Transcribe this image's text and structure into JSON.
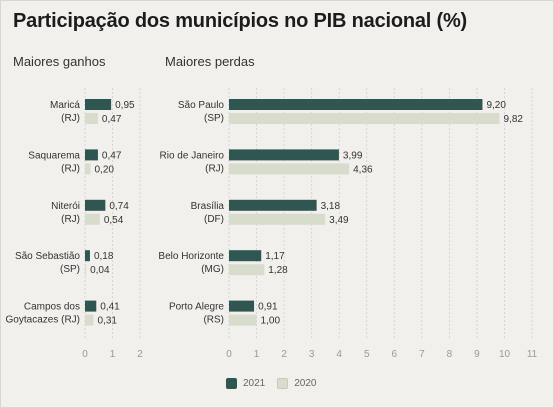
{
  "title": "Participação dos municípios no PIB nacional (%)",
  "colors": {
    "y2021": "#2f5651",
    "y2020": "#d8dccd",
    "grid": "#cfcfcb",
    "axis_text": "#9a9a96"
  },
  "chart_data": [
    {
      "type": "bar",
      "orientation": "horizontal",
      "subtitle": "Maiores ganhos",
      "categories": [
        [
          "Maricá",
          "(RJ)"
        ],
        [
          "Saquarema",
          "(RJ)"
        ],
        [
          "Niterói",
          "(RJ)"
        ],
        [
          "São Sebastião",
          "(SP)"
        ],
        [
          "Campos dos",
          "Goytacazes (RJ)"
        ]
      ],
      "series": [
        {
          "name": "2021",
          "values": [
            0.95,
            0.47,
            0.74,
            0.18,
            0.41
          ],
          "labels": [
            "0,95",
            "0,47",
            "0,74",
            "0,18",
            "0,41"
          ]
        },
        {
          "name": "2020",
          "values": [
            0.47,
            0.2,
            0.54,
            0.04,
            0.31
          ],
          "labels": [
            "0,47",
            "0,20",
            "0,54",
            "0,04",
            "0,31"
          ]
        }
      ],
      "xlim": [
        0,
        2
      ],
      "ticks": [
        0,
        1,
        2
      ],
      "grid": true
    },
    {
      "type": "bar",
      "orientation": "horizontal",
      "subtitle": "Maiores perdas",
      "categories": [
        [
          "São Paulo",
          "(SP)"
        ],
        [
          "Rio de Janeiro",
          "(RJ)"
        ],
        [
          "Brasília",
          "(DF)"
        ],
        [
          "Belo Horizonte",
          "(MG)"
        ],
        [
          "Porto Alegre",
          "(RS)"
        ]
      ],
      "series": [
        {
          "name": "2021",
          "values": [
            9.2,
            3.99,
            3.18,
            1.17,
            0.91
          ],
          "labels": [
            "9,20",
            "3,99",
            "3,18",
            "1,17",
            "0,91"
          ]
        },
        {
          "name": "2020",
          "values": [
            9.82,
            4.36,
            3.49,
            1.28,
            1.0
          ],
          "labels": [
            "9,82",
            "4,36",
            "3,49",
            "1,28",
            "1,00"
          ]
        }
      ],
      "xlim": [
        0,
        11
      ],
      "ticks": [
        0,
        1,
        2,
        3,
        4,
        5,
        6,
        7,
        8,
        9,
        10,
        11
      ],
      "grid": true
    }
  ],
  "legend": [
    {
      "label": "2021",
      "color": "#2f5651"
    },
    {
      "label": "2020",
      "color": "#d8dccd"
    }
  ]
}
